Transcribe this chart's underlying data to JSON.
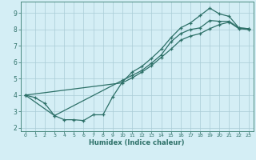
{
  "xlabel": "Humidex (Indice chaleur)",
  "bg_color": "#d4eef5",
  "grid_color": "#aaccd6",
  "line_color": "#2d7068",
  "spine_color": "#4a8a80",
  "xlim": [
    -0.5,
    23.5
  ],
  "ylim": [
    1.8,
    9.7
  ],
  "yticks": [
    2,
    3,
    4,
    5,
    6,
    7,
    8,
    9
  ],
  "xticks": [
    0,
    1,
    2,
    3,
    4,
    5,
    6,
    7,
    8,
    9,
    10,
    11,
    12,
    13,
    14,
    15,
    16,
    17,
    18,
    19,
    20,
    21,
    22,
    23
  ],
  "line1_x": [
    0,
    1,
    2,
    3,
    10,
    11,
    12,
    13,
    14,
    15,
    16,
    17,
    18,
    19,
    20,
    21,
    22,
    23
  ],
  "line1_y": [
    4.0,
    3.85,
    3.5,
    2.75,
    4.9,
    5.2,
    5.5,
    5.95,
    6.45,
    7.25,
    7.75,
    8.0,
    8.1,
    8.55,
    8.5,
    8.5,
    8.1,
    8.05
  ],
  "line2_x": [
    0,
    3,
    4,
    5,
    6,
    7,
    8,
    9,
    10,
    11,
    12,
    13,
    14,
    15,
    16,
    17,
    18,
    19,
    20,
    21,
    22,
    23
  ],
  "line2_y": [
    4.0,
    2.75,
    2.5,
    2.5,
    2.45,
    2.8,
    2.8,
    3.9,
    4.8,
    5.4,
    5.75,
    6.25,
    6.8,
    7.5,
    8.1,
    8.4,
    8.85,
    9.3,
    8.95,
    8.8,
    8.1,
    8.05
  ],
  "line3_x": [
    0,
    10,
    11,
    12,
    13,
    14,
    15,
    16,
    17,
    18,
    19,
    20,
    21,
    22,
    23
  ],
  "line3_y": [
    4.0,
    4.75,
    5.05,
    5.4,
    5.8,
    6.3,
    6.8,
    7.35,
    7.6,
    7.75,
    8.05,
    8.3,
    8.45,
    8.05,
    8.0
  ]
}
